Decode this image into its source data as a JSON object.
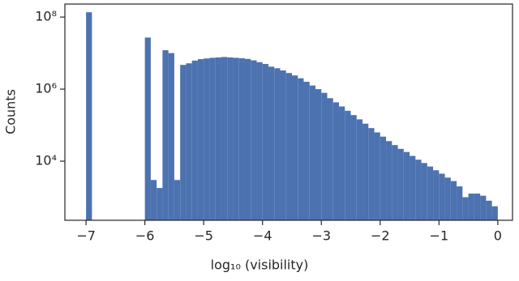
{
  "chart_data": {
    "type": "histogram",
    "xlabel": "log₁₀ (visibility)",
    "ylabel": "Counts",
    "color": "#4c72b0",
    "log_y": true,
    "bins": [
      -7,
      -6.9,
      -6.8,
      -6.7,
      -6.6,
      -6.5,
      -6.4,
      -6.3,
      -6.2,
      -6.1,
      -6,
      -5.9,
      -5.8,
      -5.7,
      -5.6,
      -5.5,
      -5.4,
      -5.3,
      -5.2,
      -5.1,
      -5,
      -4.9,
      -4.8,
      -4.7,
      -4.6,
      -4.5,
      -4.4,
      -4.3,
      -4.2,
      -4.1,
      -4,
      -3.9,
      -3.8,
      -3.7,
      -3.6,
      -3.5,
      -3.4,
      -3.3,
      -3.2,
      -3.1,
      -3,
      -2.9,
      -2.8,
      -2.7,
      -2.6,
      -2.5,
      -2.4,
      -2.3,
      -2.2,
      -2.1,
      -2,
      -1.9,
      -1.8,
      -1.7,
      -1.6,
      -1.5,
      -1.4,
      -1.3,
      -1.2,
      -1.1,
      -1,
      -0.9,
      -0.8,
      -0.7,
      -0.6,
      -0.5,
      -0.4,
      -0.3,
      -0.2,
      -0.1,
      0
    ],
    "values": [
      136000000,
      0,
      0,
      0,
      0,
      0,
      0,
      0,
      0,
      0,
      27000000,
      3000,
      1800,
      12000000,
      10000000,
      3000,
      4700000,
      5200000,
      6200000,
      6800000,
      7100000,
      7400000,
      7600000,
      7800000,
      7600000,
      7400000,
      7200000,
      6900000,
      6300000,
      5600000,
      5000000,
      4200000,
      3800000,
      3300000,
      2800000,
      2400000,
      2000000,
      1600000,
      1260000,
      1000000,
      790000,
      560000,
      430000,
      330000,
      250000,
      190000,
      145000,
      110000,
      83000,
      63000,
      48000,
      36000,
      28000,
      22000,
      18000,
      14000,
      11000,
      8900,
      7100,
      5600,
      4500,
      3500,
      2800,
      2000,
      1000,
      1260,
      1260,
      1100,
      800,
      560
    ],
    "xlim": [
      -7.36,
      0.25
    ],
    "xticks": [
      {
        "value": -7,
        "label": "−7"
      },
      {
        "value": -6,
        "label": "−6"
      },
      {
        "value": -5,
        "label": "−5"
      },
      {
        "value": -4,
        "label": "−4"
      },
      {
        "value": -3,
        "label": "−3"
      },
      {
        "value": -2,
        "label": "−2"
      },
      {
        "value": -1,
        "label": "−1"
      },
      0
    ],
    "ylim": [
      229,
      230000000
    ],
    "yticks": [
      {
        "value": 10000,
        "label": "10⁴"
      },
      {
        "value": 1000000,
        "label": "10⁶"
      },
      {
        "value": 100000000,
        "label": "10⁸"
      }
    ]
  }
}
